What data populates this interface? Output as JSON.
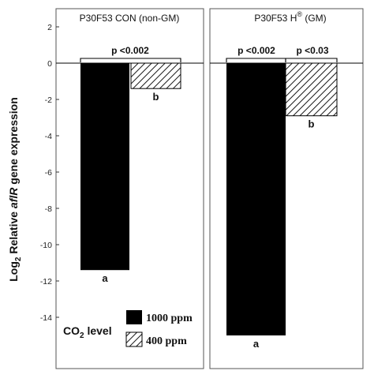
{
  "chart_data": [
    {
      "type": "bar",
      "title": "P30F53 CON (non-GM)",
      "categories": [
        "1000 ppm",
        "400 ppm"
      ],
      "values": [
        -11.4,
        -1.4
      ],
      "group_letters": [
        "a",
        "b"
      ],
      "bracket_label": "p <0.002",
      "ylim": [
        -15.5,
        2.5
      ]
    },
    {
      "type": "bar",
      "title_prefix": "P30F53 H",
      "title_suffix": "(GM)",
      "categories": [
        "1000 ppm",
        "400 ppm"
      ],
      "values": [
        -15.0,
        -2.9
      ],
      "group_letters": [
        "a",
        "b"
      ],
      "bracket_labels": [
        "p <0.002",
        "p <0.03"
      ],
      "ylim": [
        -15.5,
        2.5
      ]
    }
  ],
  "y_axis": {
    "label_prefix": "Log",
    "label_subscript": "2",
    "label_middle": " Relative ",
    "label_gene": "aflR",
    "label_suffix": " gene expression",
    "ticks": [
      2,
      0,
      -2,
      -4,
      -6,
      -8,
      -10,
      -12,
      -14
    ],
    "tick_labels": [
      "2",
      "0",
      "-2",
      "-4",
      "-6",
      "-8",
      "-10",
      "-12",
      "-14"
    ]
  },
  "legend": {
    "title_prefix": "CO",
    "title_subscript": "2",
    "title_suffix": " level",
    "items": [
      {
        "label": "1000 ppm",
        "pattern": "solid-black"
      },
      {
        "label": "400 ppm",
        "pattern": "diagonal-hatch"
      }
    ]
  },
  "colors": {
    "bar_high": "#000000",
    "hatch": "#000000",
    "frame": "#555555",
    "zero_line": "#000000"
  }
}
